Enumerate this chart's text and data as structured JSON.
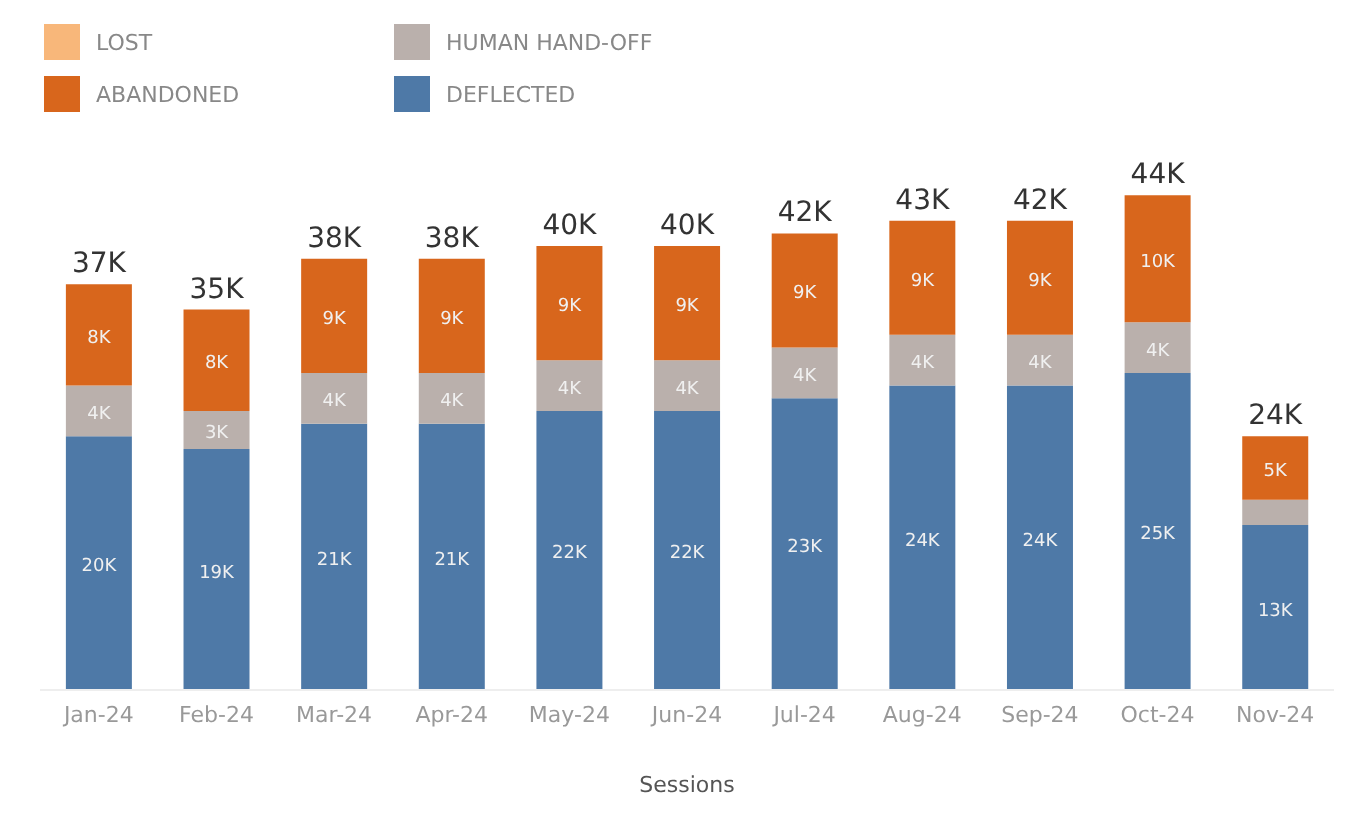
{
  "chart_data": {
    "type": "bar",
    "stacked": true,
    "xlabel": "Sessions",
    "legend": "top left",
    "categories": [
      "Jan-24",
      "Feb-24",
      "Mar-24",
      "Apr-24",
      "May-24",
      "Jun-24",
      "Jul-24",
      "Aug-24",
      "Sep-24",
      "Oct-24",
      "Nov-24"
    ],
    "series": [
      {
        "name": "DEFLECTED",
        "color": "#4e79a7",
        "values": [
          20,
          19,
          21,
          21,
          22,
          22,
          23,
          24,
          24,
          25,
          13
        ],
        "value_labels": [
          "20K",
          "19K",
          "21K",
          "21K",
          "22K",
          "22K",
          "23K",
          "24K",
          "24K",
          "25K",
          "13K"
        ]
      },
      {
        "name": "HUMAN HAND-OFF",
        "color": "#bab0ac",
        "values": [
          4,
          3,
          4,
          4,
          4,
          4,
          4,
          4,
          4,
          4,
          2
        ],
        "value_labels": [
          "4K",
          "3K",
          "4K",
          "4K",
          "4K",
          "4K",
          "4K",
          "4K",
          "4K",
          "4K",
          null
        ]
      },
      {
        "name": "ABANDONED",
        "color": "#d8661c",
        "values": [
          8,
          8,
          9,
          9,
          9,
          9,
          9,
          9,
          9,
          10,
          5
        ],
        "value_labels": [
          "8K",
          "8K",
          "9K",
          "9K",
          "9K",
          "9K",
          "9K",
          "9K",
          "9K",
          "10K",
          "5K"
        ]
      },
      {
        "name": "LOST",
        "color": "#f8b77a",
        "values": [
          null,
          null,
          null,
          null,
          null,
          null,
          null,
          null,
          null,
          null,
          null
        ]
      }
    ],
    "annotations": [
      "37K",
      "35K",
      "38K",
      "38K",
      "40K",
      "40K",
      "42K",
      "43K",
      "42K",
      "44K",
      "24K"
    ]
  }
}
